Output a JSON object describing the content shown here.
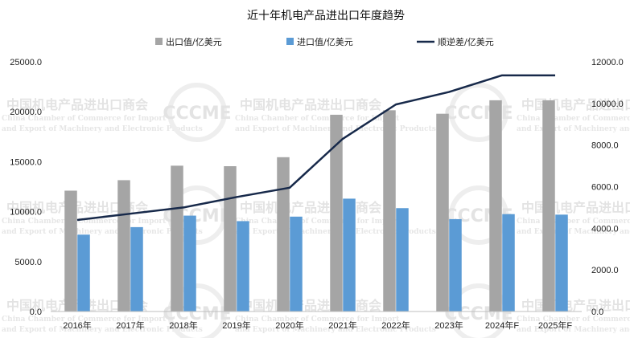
{
  "chart_data": {
    "type": "bar",
    "title": "近十年机电产品进出口年度趋势",
    "categories": [
      "2016年",
      "2017年",
      "2018年",
      "2019年",
      "2020年",
      "2021年",
      "2022年",
      "2023年",
      "2024年F",
      "2025年F"
    ],
    "series": [
      {
        "name": "出口值/亿美元",
        "type": "bar",
        "axis": "left",
        "color": "#a5a5a5",
        "values": [
          12100,
          13150,
          14600,
          14550,
          15450,
          19700,
          20150,
          19800,
          21150,
          21150
        ]
      },
      {
        "name": "进口值/亿美元",
        "type": "bar",
        "axis": "left",
        "color": "#5b9bd5",
        "values": [
          7700,
          8450,
          9600,
          9050,
          9500,
          11300,
          10350,
          9250,
          9750,
          9700
        ]
      },
      {
        "name": "顺逆差/亿美元",
        "type": "line",
        "axis": "right",
        "color": "#17294a",
        "values": [
          4400,
          4700,
          5000,
          5500,
          5950,
          8300,
          9950,
          10550,
          11350,
          11350
        ]
      }
    ],
    "y_left": {
      "min": 0,
      "max": 25000,
      "ticks": [
        "0.0",
        "5000.0",
        "10000.0",
        "15000.0",
        "20000.0",
        "25000.0"
      ]
    },
    "y_right": {
      "min": 0,
      "max": 12000,
      "ticks": [
        "0.0",
        "2000.0",
        "4000.0",
        "6000.0",
        "8000.0",
        "10000.0",
        "12000.0"
      ]
    },
    "legend_position": "top",
    "grid": false
  },
  "watermark": {
    "org_cn": "中国机电产品进出口商会",
    "org_en_1": "China Chamber of Commerce for Import",
    "org_en_2": "and Export of Machinery and Electronic Products",
    "logo": "CCCME"
  }
}
